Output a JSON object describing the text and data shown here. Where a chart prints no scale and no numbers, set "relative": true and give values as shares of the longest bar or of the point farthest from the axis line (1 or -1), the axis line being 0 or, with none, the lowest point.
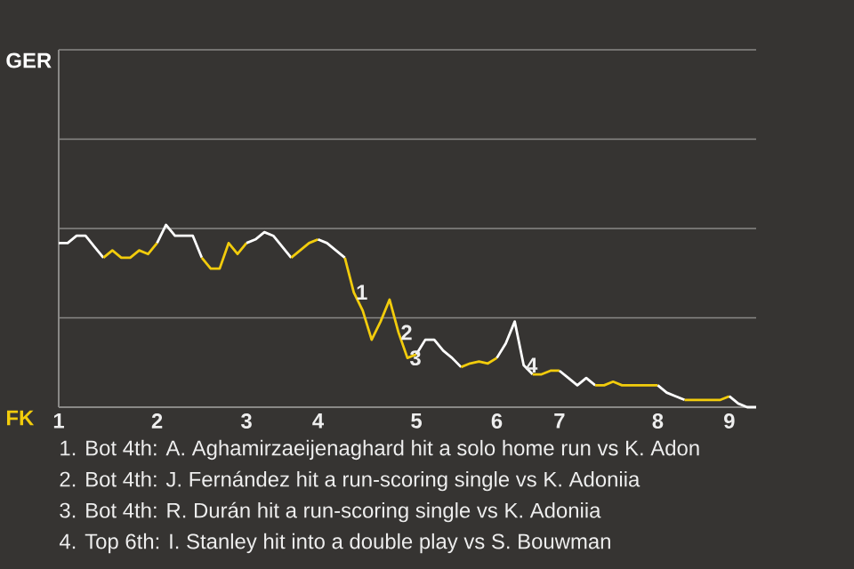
{
  "chart_data": {
    "type": "line",
    "relative": true,
    "categories": [
      "1",
      null,
      null,
      null,
      null,
      null,
      null,
      null,
      null,
      null,
      null,
      "2",
      null,
      null,
      null,
      null,
      null,
      null,
      null,
      null,
      null,
      "3",
      null,
      null,
      null,
      null,
      null,
      null,
      null,
      "4",
      null,
      null,
      null,
      null,
      null,
      null,
      null,
      null,
      null,
      null,
      "5",
      null,
      null,
      null,
      null,
      null,
      null,
      null,
      null,
      "6",
      null,
      null,
      null,
      null,
      null,
      null,
      "7",
      null,
      null,
      null,
      null,
      null,
      null,
      null,
      null,
      null,
      null,
      "8",
      null,
      null,
      null,
      null,
      null,
      null,
      null,
      "9",
      null,
      null,
      null
    ],
    "series": [
      {
        "color": "#ffffff",
        "values": [
          0.9,
          0.9,
          0.94,
          0.94,
          0.88,
          0.82,
          null,
          null,
          null,
          null,
          null,
          null,
          null,
          null,
          null,
          null,
          null,
          null,
          null,
          null,
          null,
          null,
          null,
          null,
          null,
          null,
          null,
          null,
          null,
          null,
          null,
          null,
          null,
          null,
          null,
          null,
          null,
          null,
          null,
          null,
          null,
          null,
          null,
          null,
          null,
          null,
          null,
          null,
          null,
          null,
          null,
          null,
          null,
          null,
          null,
          null,
          null,
          null,
          null,
          null,
          null,
          null,
          null,
          null,
          null,
          null,
          null,
          null,
          null,
          null,
          null,
          null,
          null,
          null,
          null,
          null,
          null,
          null,
          null
        ]
      },
      {
        "color": "#f2cc0c",
        "values": [
          null,
          null,
          null,
          null,
          null,
          0.82,
          0.86,
          0.82,
          0.82,
          0.86,
          0.84,
          0.9,
          null,
          null,
          null,
          null,
          null,
          null,
          null,
          null,
          null,
          null,
          null,
          null,
          null,
          null,
          null,
          null,
          null,
          null,
          null,
          null,
          null,
          null,
          null,
          null,
          null,
          null,
          null,
          null,
          null,
          null,
          null,
          null,
          null,
          null,
          null,
          null,
          null,
          null,
          null,
          null,
          null,
          null,
          null,
          null,
          null,
          null,
          null,
          null,
          null,
          null,
          null,
          null,
          null,
          null,
          null,
          null,
          null,
          null,
          null,
          null,
          null,
          null,
          null,
          null,
          null,
          null,
          null
        ]
      },
      {
        "color": "#ffffff",
        "values": [
          null,
          null,
          null,
          null,
          null,
          null,
          null,
          null,
          null,
          null,
          null,
          0.9,
          1,
          0.94,
          0.94,
          0.94,
          0.82,
          null,
          null,
          null,
          null,
          null,
          null,
          null,
          null,
          null,
          null,
          null,
          null,
          null,
          null,
          null,
          null,
          null,
          null,
          null,
          null,
          null,
          null,
          null,
          null,
          null,
          null,
          null,
          null,
          null,
          null,
          null,
          null,
          null,
          null,
          null,
          null,
          null,
          null,
          null,
          null,
          null,
          null,
          null,
          null,
          null,
          null,
          null,
          null,
          null,
          null,
          null,
          null,
          null,
          null,
          null,
          null,
          null,
          null,
          null,
          null,
          null,
          null
        ]
      },
      {
        "color": "#f2cc0c",
        "values": [
          null,
          null,
          null,
          null,
          null,
          null,
          null,
          null,
          null,
          null,
          null,
          null,
          null,
          null,
          null,
          null,
          0.82,
          0.76,
          0.76,
          0.9,
          0.84,
          0.9,
          null,
          null,
          null,
          null,
          null,
          null,
          null,
          null,
          null,
          null,
          null,
          null,
          null,
          null,
          null,
          null,
          null,
          null,
          null,
          null,
          null,
          null,
          null,
          null,
          null,
          null,
          null,
          null,
          null,
          null,
          null,
          null,
          null,
          null,
          null,
          null,
          null,
          null,
          null,
          null,
          null,
          null,
          null,
          null,
          null,
          null,
          null,
          null,
          null,
          null,
          null,
          null,
          null,
          null,
          null,
          null,
          null
        ]
      },
      {
        "color": "#ffffff",
        "values": [
          null,
          null,
          null,
          null,
          null,
          null,
          null,
          null,
          null,
          null,
          null,
          null,
          null,
          null,
          null,
          null,
          null,
          null,
          null,
          null,
          null,
          0.9,
          0.92,
          0.96,
          0.94,
          0.88,
          0.82,
          null,
          null,
          null,
          null,
          null,
          null,
          null,
          null,
          null,
          null,
          null,
          null,
          null,
          null,
          null,
          null,
          null,
          null,
          null,
          null,
          null,
          null,
          null,
          null,
          null,
          null,
          null,
          null,
          null,
          null,
          null,
          null,
          null,
          null,
          null,
          null,
          null,
          null,
          null,
          null,
          null,
          null,
          null,
          null,
          null,
          null,
          null,
          null,
          null,
          null,
          null,
          null
        ]
      },
      {
        "color": "#f2cc0c",
        "values": [
          null,
          null,
          null,
          null,
          null,
          null,
          null,
          null,
          null,
          null,
          null,
          null,
          null,
          null,
          null,
          null,
          null,
          null,
          null,
          null,
          null,
          null,
          null,
          null,
          null,
          null,
          0.82,
          0.86,
          0.9,
          0.92,
          null,
          null,
          null,
          null,
          null,
          null,
          null,
          null,
          null,
          null,
          null,
          null,
          null,
          null,
          null,
          null,
          null,
          null,
          null,
          null,
          null,
          null,
          null,
          null,
          null,
          null,
          null,
          null,
          null,
          null,
          null,
          null,
          null,
          null,
          null,
          null,
          null,
          null,
          null,
          null,
          null,
          null,
          null,
          null,
          null,
          null,
          null,
          null,
          null
        ]
      },
      {
        "color": "#ffffff",
        "values": [
          null,
          null,
          null,
          null,
          null,
          null,
          null,
          null,
          null,
          null,
          null,
          null,
          null,
          null,
          null,
          null,
          null,
          null,
          null,
          null,
          null,
          null,
          null,
          null,
          null,
          null,
          null,
          null,
          null,
          0.92,
          0.9,
          0.86,
          0.82,
          null,
          null,
          null,
          null,
          null,
          null,
          null,
          null,
          null,
          null,
          null,
          null,
          null,
          null,
          null,
          null,
          null,
          null,
          null,
          null,
          null,
          null,
          null,
          null,
          null,
          null,
          null,
          null,
          null,
          null,
          null,
          null,
          null,
          null,
          null,
          null,
          null,
          null,
          null,
          null,
          null,
          null,
          null,
          null,
          null,
          null
        ]
      },
      {
        "color": "#f2cc0c",
        "values": [
          null,
          null,
          null,
          null,
          null,
          null,
          null,
          null,
          null,
          null,
          null,
          null,
          null,
          null,
          null,
          null,
          null,
          null,
          null,
          null,
          null,
          null,
          null,
          null,
          null,
          null,
          null,
          null,
          null,
          null,
          null,
          null,
          0.82,
          0.63,
          0.53,
          0.37,
          0.47,
          0.59,
          0.41,
          0.27,
          0.29,
          null,
          null,
          null,
          null,
          null,
          null,
          null,
          null,
          null,
          null,
          null,
          null,
          null,
          null,
          null,
          null,
          null,
          null,
          null,
          null,
          null,
          null,
          null,
          null,
          null,
          null,
          null,
          null,
          null,
          null,
          null,
          null,
          null,
          null,
          null,
          null,
          null,
          null
        ]
      },
      {
        "color": "#ffffff",
        "values": [
          null,
          null,
          null,
          null,
          null,
          null,
          null,
          null,
          null,
          null,
          null,
          null,
          null,
          null,
          null,
          null,
          null,
          null,
          null,
          null,
          null,
          null,
          null,
          null,
          null,
          null,
          null,
          null,
          null,
          null,
          null,
          null,
          null,
          null,
          null,
          null,
          null,
          null,
          null,
          null,
          0.29,
          0.37,
          0.37,
          0.31,
          0.27,
          0.22,
          null,
          null,
          null,
          null,
          null,
          null,
          null,
          null,
          null,
          null,
          null,
          null,
          null,
          null,
          null,
          null,
          null,
          null,
          null,
          null,
          null,
          null,
          null,
          null,
          null,
          null,
          null,
          null,
          null,
          null,
          null,
          null,
          null
        ]
      },
      {
        "color": "#f2cc0c",
        "values": [
          null,
          null,
          null,
          null,
          null,
          null,
          null,
          null,
          null,
          null,
          null,
          null,
          null,
          null,
          null,
          null,
          null,
          null,
          null,
          null,
          null,
          null,
          null,
          null,
          null,
          null,
          null,
          null,
          null,
          null,
          null,
          null,
          null,
          null,
          null,
          null,
          null,
          null,
          null,
          null,
          null,
          null,
          null,
          null,
          null,
          0.22,
          0.24,
          0.25,
          0.24,
          0.27,
          null,
          null,
          null,
          null,
          null,
          null,
          null,
          null,
          null,
          null,
          null,
          null,
          null,
          null,
          null,
          null,
          null,
          null,
          null,
          null,
          null,
          null,
          null,
          null,
          null,
          null,
          null,
          null,
          null
        ]
      },
      {
        "color": "#ffffff",
        "values": [
          null,
          null,
          null,
          null,
          null,
          null,
          null,
          null,
          null,
          null,
          null,
          null,
          null,
          null,
          null,
          null,
          null,
          null,
          null,
          null,
          null,
          null,
          null,
          null,
          null,
          null,
          null,
          null,
          null,
          null,
          null,
          null,
          null,
          null,
          null,
          null,
          null,
          null,
          null,
          null,
          null,
          null,
          null,
          null,
          null,
          null,
          null,
          null,
          null,
          0.27,
          0.35,
          0.47,
          0.23,
          0.18,
          null,
          null,
          null,
          null,
          null,
          null,
          null,
          null,
          null,
          null,
          null,
          null,
          null,
          null,
          null,
          null,
          null,
          null,
          null,
          null,
          null,
          null,
          null,
          null,
          null
        ]
      },
      {
        "color": "#f2cc0c",
        "values": [
          null,
          null,
          null,
          null,
          null,
          null,
          null,
          null,
          null,
          null,
          null,
          null,
          null,
          null,
          null,
          null,
          null,
          null,
          null,
          null,
          null,
          null,
          null,
          null,
          null,
          null,
          null,
          null,
          null,
          null,
          null,
          null,
          null,
          null,
          null,
          null,
          null,
          null,
          null,
          null,
          null,
          null,
          null,
          null,
          null,
          null,
          null,
          null,
          null,
          null,
          null,
          null,
          null,
          0.18,
          0.18,
          0.2,
          0.2,
          null,
          null,
          null,
          null,
          null,
          null,
          null,
          null,
          null,
          null,
          null,
          null,
          null,
          null,
          null,
          null,
          null,
          null,
          null,
          null,
          null,
          null
        ]
      },
      {
        "color": "#ffffff",
        "values": [
          null,
          null,
          null,
          null,
          null,
          null,
          null,
          null,
          null,
          null,
          null,
          null,
          null,
          null,
          null,
          null,
          null,
          null,
          null,
          null,
          null,
          null,
          null,
          null,
          null,
          null,
          null,
          null,
          null,
          null,
          null,
          null,
          null,
          null,
          null,
          null,
          null,
          null,
          null,
          null,
          null,
          null,
          null,
          null,
          null,
          null,
          null,
          null,
          null,
          null,
          null,
          null,
          null,
          null,
          null,
          null,
          0.2,
          0.16,
          0.12,
          0.16,
          0.12,
          null,
          null,
          null,
          null,
          null,
          null,
          null,
          null,
          null,
          null,
          null,
          null,
          null,
          null,
          null,
          null,
          null,
          null
        ]
      },
      {
        "color": "#f2cc0c",
        "values": [
          null,
          null,
          null,
          null,
          null,
          null,
          null,
          null,
          null,
          null,
          null,
          null,
          null,
          null,
          null,
          null,
          null,
          null,
          null,
          null,
          null,
          null,
          null,
          null,
          null,
          null,
          null,
          null,
          null,
          null,
          null,
          null,
          null,
          null,
          null,
          null,
          null,
          null,
          null,
          null,
          null,
          null,
          null,
          null,
          null,
          null,
          null,
          null,
          null,
          null,
          null,
          null,
          null,
          null,
          null,
          null,
          null,
          null,
          null,
          null,
          0.12,
          0.12,
          0.14,
          0.12,
          0.12,
          0.12,
          0.12,
          0.12,
          null,
          null,
          null,
          null,
          null,
          null,
          null,
          null,
          null,
          null,
          null
        ]
      },
      {
        "color": "#ffffff",
        "values": [
          null,
          null,
          null,
          null,
          null,
          null,
          null,
          null,
          null,
          null,
          null,
          null,
          null,
          null,
          null,
          null,
          null,
          null,
          null,
          null,
          null,
          null,
          null,
          null,
          null,
          null,
          null,
          null,
          null,
          null,
          null,
          null,
          null,
          null,
          null,
          null,
          null,
          null,
          null,
          null,
          null,
          null,
          null,
          null,
          null,
          null,
          null,
          null,
          null,
          null,
          null,
          null,
          null,
          null,
          null,
          null,
          null,
          null,
          null,
          null,
          null,
          null,
          null,
          null,
          null,
          null,
          null,
          0.12,
          0.08,
          0.06,
          0.04,
          null,
          null,
          null,
          null,
          null,
          null,
          null,
          null
        ]
      },
      {
        "color": "#f2cc0c",
        "values": [
          null,
          null,
          null,
          null,
          null,
          null,
          null,
          null,
          null,
          null,
          null,
          null,
          null,
          null,
          null,
          null,
          null,
          null,
          null,
          null,
          null,
          null,
          null,
          null,
          null,
          null,
          null,
          null,
          null,
          null,
          null,
          null,
          null,
          null,
          null,
          null,
          null,
          null,
          null,
          null,
          null,
          null,
          null,
          null,
          null,
          null,
          null,
          null,
          null,
          null,
          null,
          null,
          null,
          null,
          null,
          null,
          null,
          null,
          null,
          null,
          null,
          null,
          null,
          null,
          null,
          null,
          null,
          null,
          null,
          null,
          0.04,
          0.04,
          0.04,
          0.04,
          0.04,
          0.06,
          null,
          null,
          null
        ]
      },
      {
        "color": "#ffffff",
        "values": [
          null,
          null,
          null,
          null,
          null,
          null,
          null,
          null,
          null,
          null,
          null,
          null,
          null,
          null,
          null,
          null,
          null,
          null,
          null,
          null,
          null,
          null,
          null,
          null,
          null,
          null,
          null,
          null,
          null,
          null,
          null,
          null,
          null,
          null,
          null,
          null,
          null,
          null,
          null,
          null,
          null,
          null,
          null,
          null,
          null,
          null,
          null,
          null,
          null,
          null,
          null,
          null,
          null,
          null,
          null,
          null,
          null,
          null,
          null,
          null,
          null,
          null,
          null,
          null,
          null,
          null,
          null,
          null,
          null,
          null,
          null,
          null,
          null,
          null,
          null,
          0.06,
          0.02,
          0,
          0
        ]
      }
    ],
    "ref_lines": [
      {
        "axis": "y",
        "value": 0.49,
        "color": "#8a8987"
      },
      {
        "axis": "y",
        "value": 0.98,
        "color": "#8a8987"
      },
      {
        "axis": "y",
        "value": 1.47,
        "color": "#8a8987"
      },
      {
        "axis": "y",
        "value": 1.96,
        "color": "#8a8987"
      }
    ],
    "annotations": [
      "GER",
      "FK",
      "1",
      "2",
      "3",
      "4",
      "1. Bot 4th: A. Aghamirzaeijenaghard hit a solo home run vs K. Adon",
      "2. Bot 4th: J. Fernández hit a run-scoring single vs K. Adoniia",
      "3. Bot 4th: R. Durán hit a run-scoring single vs K. Adoniia",
      "4. Top 6th: I. Stanley hit into a double play vs S. Bouwman"
    ]
  }
}
